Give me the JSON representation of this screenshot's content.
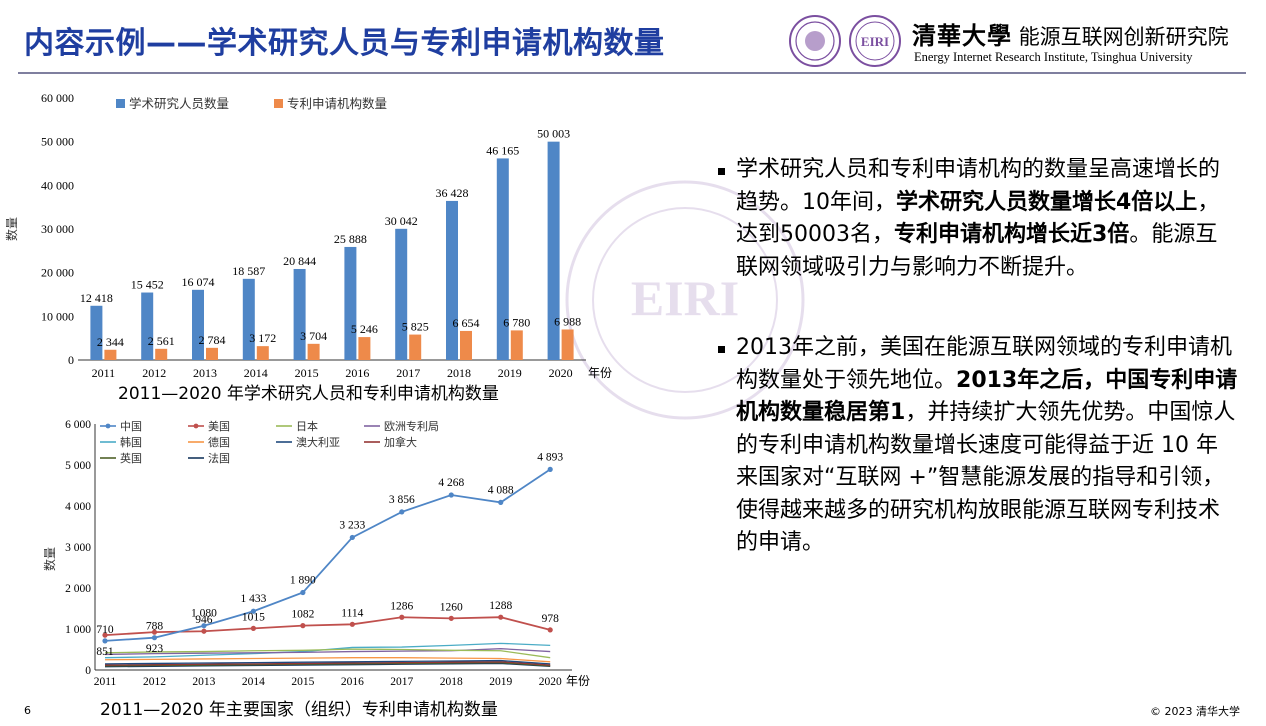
{
  "header": {
    "title": "内容示例——学术研究人员与专利申请机构数量",
    "logo_text": "EIRI",
    "brand_cn_seal": "清華大學",
    "brand_cn_name": "能源互联网创新研究院",
    "brand_en": "Energy Internet Research Institute, Tsinghua University"
  },
  "colors": {
    "title": "#1f3ea0",
    "bar_researchers": "#4f86c6",
    "bar_patents": "#ee8a4a"
  },
  "chart_data": [
    {
      "type": "bar",
      "caption": "2011—2020 年学术研究人员和专利申请机构数量",
      "ylabel": "数量",
      "xlabel_suffix": "年份",
      "ylim": [
        0,
        60000
      ],
      "yticks": [
        "0",
        "10 000",
        "20 000",
        "30 000",
        "40 000",
        "50 000",
        "60 000"
      ],
      "categories": [
        "2011",
        "2012",
        "2013",
        "2014",
        "2015",
        "2016",
        "2017",
        "2018",
        "2019",
        "2020"
      ],
      "series": [
        {
          "name": "学术研究人员数量",
          "values": [
            12418,
            15452,
            16074,
            18587,
            20844,
            25888,
            30042,
            36428,
            46165,
            50003
          ],
          "labels": [
            "12 418",
            "15 452",
            "16 074",
            "18 587",
            "20 844",
            "25 888",
            "30 042",
            "36 428",
            "46 165",
            "50 003"
          ]
        },
        {
          "name": "专利申请机构数量",
          "values": [
            2344,
            2561,
            2784,
            3172,
            3704,
            5246,
            5825,
            6654,
            6780,
            6988
          ],
          "labels": [
            "2 344",
            "2 561",
            "2 784",
            "3 172",
            "3 704",
            "5 246",
            "5 825",
            "6 654",
            "6 780",
            "6 988"
          ]
        }
      ],
      "legend_position": "top"
    },
    {
      "type": "line",
      "caption": "2011—2020 年主要国家（组织）专利申请机构数量",
      "ylabel": "数量",
      "xlabel_suffix": "年份",
      "ylim": [
        0,
        6000
      ],
      "yticks": [
        "0",
        "1 000",
        "2 000",
        "3 000",
        "4 000",
        "5 000",
        "6 000"
      ],
      "categories": [
        "2011",
        "2012",
        "2013",
        "2014",
        "2015",
        "2016",
        "2017",
        "2018",
        "2019",
        "2020"
      ],
      "series": [
        {
          "name": "中国",
          "color": "#4f86c6",
          "values": [
            710,
            788,
            1080,
            1433,
            1890,
            3233,
            3856,
            4268,
            4088,
            4893
          ],
          "labels": [
            "710",
            "788",
            "1 080",
            "1 433",
            "1 890",
            "3 233",
            "3 856",
            "4 268",
            "4 088",
            "4 893"
          ]
        },
        {
          "name": "美国",
          "color": "#c0504d",
          "values": [
            851,
            923,
            946,
            1015,
            1082,
            1114,
            1286,
            1260,
            1288,
            978
          ],
          "labels": [
            "851",
            "923",
            "946",
            "1015",
            "1082",
            "1114",
            "1286",
            "1260",
            "1288",
            "978"
          ]
        },
        {
          "name": "日本",
          "color": "#9bbb59",
          "values": [
            420,
            440,
            450,
            470,
            480,
            510,
            500,
            480,
            470,
            300
          ]
        },
        {
          "name": "欧洲专利局",
          "color": "#8064a2",
          "values": [
            380,
            400,
            410,
            420,
            430,
            450,
            460,
            470,
            520,
            450
          ]
        },
        {
          "name": "韩国",
          "color": "#4bacc6",
          "values": [
            300,
            320,
            360,
            400,
            450,
            550,
            560,
            600,
            650,
            600
          ]
        },
        {
          "name": "德国",
          "color": "#f79646",
          "values": [
            250,
            260,
            270,
            280,
            290,
            300,
            300,
            290,
            280,
            200
          ]
        },
        {
          "name": "澳大利亚",
          "color": "#1f497d",
          "values": [
            150,
            160,
            170,
            180,
            190,
            200,
            210,
            220,
            230,
            150
          ]
        },
        {
          "name": "加拿大",
          "color": "#943634",
          "values": [
            120,
            130,
            140,
            150,
            160,
            170,
            180,
            190,
            200,
            120
          ]
        },
        {
          "name": "英国",
          "color": "#4f6228",
          "values": [
            100,
            110,
            120,
            130,
            140,
            150,
            160,
            170,
            180,
            100
          ]
        },
        {
          "name": "法国",
          "color": "#17375e",
          "values": [
            80,
            90,
            100,
            110,
            120,
            130,
            140,
            150,
            160,
            90
          ]
        }
      ],
      "legend_position": "top"
    }
  ],
  "bullets": [
    {
      "parts": [
        {
          "t": "学术研究人员和专利申请机构的数量呈高速增长的趋势。10年间，",
          "b": false
        },
        {
          "t": "学术研究人员数量增长4倍以上",
          "b": true
        },
        {
          "t": "，达到50003名，",
          "b": false
        },
        {
          "t": "专利申请机构增长近3倍",
          "b": true
        },
        {
          "t": "。能源互联网领域吸引力与影响力不断提升。",
          "b": false
        }
      ]
    },
    {
      "parts": [
        {
          "t": "2013年之前，美国在能源互联网领域的专利申请机构数量处于领先地位。",
          "b": false
        },
        {
          "t": "2013年之后，中国专利申请机构数量稳居第1",
          "b": true
        },
        {
          "t": "，并持续扩大领先优势。中国惊人的专利申请机构数量增长速度可能得益于近 10 年来国家对“互联网 +”智慧能源发展的指导和引领，使得越来越多的研究机构放眼能源互联网专利技术的申请。",
          "b": false
        }
      ]
    }
  ],
  "watermark_text": "能源互联网创新研究院 Energy Internet Research Institute Tsinghua",
  "footer": {
    "page_number": "6",
    "copyright": "© 2023 清华大学"
  }
}
